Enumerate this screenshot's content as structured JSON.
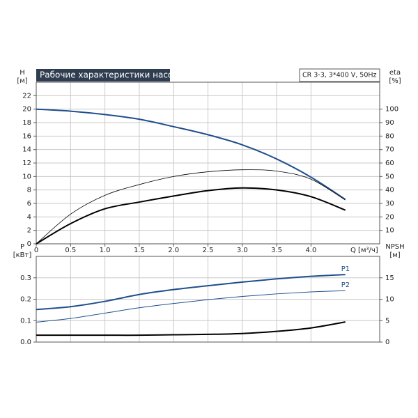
{
  "chart_data": [
    {
      "type": "line",
      "title": "Рабочие характеристики насоса",
      "subtitle": "CR 3-3, 3*400 V, 50Hz",
      "ylabel": [
        "H",
        "[м]"
      ],
      "y2label": [
        "eta",
        "[%]"
      ],
      "xlabel": "Q [м³/ч]",
      "x": [
        0,
        0.5,
        1,
        1.5,
        2,
        2.5,
        3,
        3.5,
        4,
        4.5
      ],
      "xlim": [
        0,
        5
      ],
      "xticks": [
        0,
        0.5,
        {
          "value": 1,
          "label": "1.0"
        },
        1.5,
        {
          "value": 2,
          "label": "2.0"
        },
        2.5,
        {
          "value": 3,
          "label": "3.0"
        },
        3.5,
        {
          "value": 4,
          "label": "4.0"
        }
      ],
      "ylim": [
        0,
        24
      ],
      "yticks": [
        0,
        2,
        4,
        6,
        8,
        10,
        12,
        14,
        16,
        18,
        20,
        22
      ],
      "y2lim": [
        0,
        120
      ],
      "y2ticks": [
        10,
        20,
        30,
        40,
        50,
        60,
        70,
        80,
        90,
        100
      ],
      "grid": true,
      "series": [
        {
          "color": "#1f4e8c",
          "line_width": 2,
          "values": [
            20,
            19.7,
            19.2,
            18.5,
            17.4,
            16.2,
            14.7,
            12.6,
            9.9,
            6.6
          ]
        },
        {
          "color": "#000000",
          "line_width": 0.8,
          "axis": "y2",
          "values": [
            0,
            22,
            36,
            44,
            50,
            53.5,
            55,
            54,
            48,
            32.5
          ]
        },
        {
          "color": "#000000",
          "line_width": 2,
          "axis": "y2",
          "values": [
            0,
            15,
            26,
            31,
            35.5,
            39.5,
            41.5,
            40,
            35,
            25
          ]
        }
      ]
    },
    {
      "type": "line",
      "ylabel": [
        "P",
        "[кВт]"
      ],
      "y2label": [
        "NPSH",
        "[м]"
      ],
      "x": [
        0,
        0.5,
        1,
        1.5,
        2,
        2.5,
        3,
        3.5,
        4,
        4.5
      ],
      "xlim": [
        0,
        5
      ],
      "ylim": [
        0,
        0.4
      ],
      "yticks": [
        {
          "value": 0,
          "label": "0.0"
        },
        0.1,
        0.2,
        0.3
      ],
      "y2lim": [
        0,
        20
      ],
      "y2ticks": [
        0,
        5,
        10,
        15
      ],
      "grid": true,
      "series": [
        {
          "name": "P1",
          "color": "#1f4e8c",
          "line_width": 2,
          "values": [
            0.152,
            0.165,
            0.19,
            0.222,
            0.245,
            0.263,
            0.28,
            0.295,
            0.307,
            0.315
          ]
        },
        {
          "name": "P2",
          "color": "#1f4e8c",
          "line_width": 1,
          "values": [
            0.093,
            0.11,
            0.135,
            0.16,
            0.18,
            0.198,
            0.213,
            0.225,
            0.234,
            0.24
          ]
        },
        {
          "color": "#000000",
          "line_width": 2,
          "axis": "y2",
          "values": [
            1.6,
            1.6,
            1.6,
            1.6,
            1.7,
            1.8,
            2.0,
            2.5,
            3.3,
            4.7
          ]
        }
      ]
    }
  ]
}
